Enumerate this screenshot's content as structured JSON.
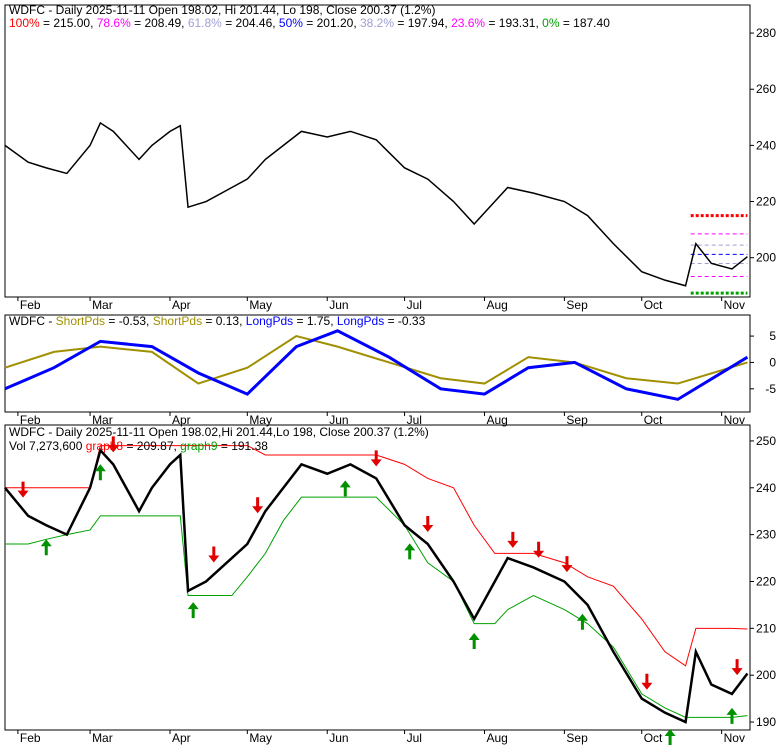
{
  "chart_data": [
    {
      "type": "line",
      "panel": "price-fibonacci",
      "title": "WDFC - Daily 2025-11-11 Open 198.02, Hi 201.44, Lo 198, Close 200.37 (1.2%)",
      "fib_levels": [
        {
          "label": "100%",
          "value": 215.0,
          "color": "#ff0000"
        },
        {
          "label": "78.6%",
          "value": 208.49,
          "color": "#ff00ff"
        },
        {
          "label": "61.8%",
          "value": 204.46,
          "color": "#a0a0d0"
        },
        {
          "label": "50%",
          "value": 201.2,
          "color": "#0000ff"
        },
        {
          "label": "38.2%",
          "value": 197.94,
          "color": "#a0a0d0"
        },
        {
          "label": "23.6%",
          "value": 193.31,
          "color": "#ff00ff"
        },
        {
          "label": "0%",
          "value": 187.4,
          "color": "#00a000"
        }
      ],
      "fib_texts": {
        "f100": "100%",
        "v100": " = 215.00, ",
        "f786": "78.6%",
        "v786": " = 208.49, ",
        "f618": "61.8%",
        "v618": " = 204.46, ",
        "f50": "50%",
        "v50": " = 201.20, ",
        "f382": "38.2%",
        "v382": " = 197.94, ",
        "f236": "23.6%",
        "v236": " = 193.31, ",
        "f0": "0%",
        "v0": " = 187.40"
      },
      "y_ticks": [
        "280",
        "260",
        "240",
        "220",
        "200"
      ],
      "ylim": [
        186,
        290
      ]
    },
    {
      "type": "line",
      "panel": "oscillator",
      "title_prefix": "WDFC - ",
      "labels": [
        {
          "text": "ShortPds",
          "value": " = -0.53, ",
          "color": "#a09000"
        },
        {
          "text": "ShortPds",
          "value": " = 0.13, ",
          "color": "#a09000"
        },
        {
          "text": "LongPds",
          "value": " = 1.75, ",
          "color": "#0000ff"
        },
        {
          "text": "LongPds",
          "value": " = -0.33",
          "color": "#0000ff"
        }
      ],
      "y_ticks": [
        "5",
        "0",
        "-5"
      ],
      "ylim": [
        -9.4,
        9
      ],
      "x": [
        "2025-01-27",
        "2025-02-15",
        "2025-03-05",
        "2025-03-25",
        "2025-04-12",
        "2025-05-01",
        "2025-05-20",
        "2025-06-05",
        "2025-06-25",
        "2025-07-15",
        "2025-08-01",
        "2025-08-18",
        "2025-09-05",
        "2025-09-25",
        "2025-10-15",
        "2025-11-11"
      ],
      "series": [
        {
          "values": [
            -1,
            2,
            3,
            2,
            -4,
            -1,
            5,
            3,
            0,
            -3,
            -4,
            1,
            0,
            -3,
            -4,
            0
          ],
          "color": "#a09000"
        },
        {
          "values": [
            -5,
            -1,
            4,
            3,
            -2,
            -6,
            3,
            6,
            1,
            -5,
            -6,
            -1,
            0,
            -5,
            -7,
            1
          ],
          "color": "#0000ff"
        }
      ]
    },
    {
      "type": "line",
      "panel": "price-stops",
      "title": "WDFC - Daily 2025-11-11 Open 198.02,Hi 201.44,Lo 198, Close 200.37 (1.2%)",
      "legend": {
        "vol": "Vol 7,273,600 ",
        "graph8": "graph8",
        "graph8_value": " = 209.87, ",
        "graph9": "graph9",
        "graph9_value": " = 191.38"
      },
      "y_ticks": [
        "250",
        "240",
        "230",
        "220",
        "210",
        "200",
        "190"
      ],
      "ylim": [
        188.3,
        253.4
      ],
      "x": [
        "2025-01-27",
        "2025-02-05",
        "2025-02-12",
        "2025-02-20",
        "2025-03-01",
        "2025-03-05",
        "2025-03-10",
        "2025-03-15",
        "2025-03-20",
        "2025-03-25",
        "2025-04-01",
        "2025-04-05",
        "2025-04-08",
        "2025-04-15",
        "2025-04-25",
        "2025-05-01",
        "2025-05-08",
        "2025-05-15",
        "2025-05-22",
        "2025-06-01",
        "2025-06-10",
        "2025-06-20",
        "2025-07-01",
        "2025-07-10",
        "2025-07-20",
        "2025-07-28",
        "2025-08-05",
        "2025-08-10",
        "2025-08-20",
        "2025-09-01",
        "2025-09-10",
        "2025-09-20",
        "2025-10-01",
        "2025-10-10",
        "2025-10-18",
        "2025-10-22",
        "2025-10-28",
        "2025-11-05",
        "2025-11-11"
      ],
      "close": [
        240,
        234,
        232,
        230,
        240,
        248,
        245,
        240,
        235,
        240,
        245,
        247,
        218,
        220,
        225,
        228,
        235,
        240,
        245,
        243,
        245,
        242,
        232,
        228,
        220,
        212,
        220,
        225,
        223,
        220,
        215,
        205,
        195,
        192,
        190,
        205,
        198,
        196,
        200.37
      ],
      "graph8": [
        240,
        240,
        240,
        240,
        240,
        249,
        249,
        249,
        249,
        249,
        249,
        249,
        249,
        249,
        249,
        249,
        247,
        247,
        247,
        247,
        247,
        247,
        245,
        242,
        240,
        232,
        226,
        226,
        226,
        224,
        221,
        219,
        212,
        205,
        202,
        210,
        210,
        210,
        209.87
      ],
      "graph9": [
        228,
        228,
        229,
        230,
        231,
        234,
        234,
        234,
        234,
        234,
        234,
        234,
        217,
        217,
        217,
        221,
        226,
        233,
        238,
        238,
        238,
        238,
        232,
        224,
        220,
        211,
        211,
        214,
        217,
        214,
        211,
        206,
        196,
        193,
        191,
        191,
        191,
        191,
        191.38
      ],
      "x_ticks": [
        "Feb",
        "Mar",
        "Apr",
        "May",
        "Jun",
        "Jul",
        "Aug",
        "Sep",
        "Oct",
        "Nov"
      ],
      "x_tick_dates": [
        "2025-02-01",
        "2025-03-01",
        "2025-04-01",
        "2025-05-01",
        "2025-06-01",
        "2025-07-01",
        "2025-08-01",
        "2025-09-01",
        "2025-10-01",
        "2025-11-01"
      ],
      "signals_down": [
        "2025-02-03",
        "2025-03-10",
        "2025-04-18",
        "2025-05-05",
        "2025-06-20",
        "2025-07-10",
        "2025-08-12",
        "2025-08-22",
        "2025-09-02",
        "2025-10-03",
        "2025-11-07"
      ],
      "signals_up": [
        "2025-02-12",
        "2025-03-05",
        "2025-04-10",
        "2025-06-08",
        "2025-07-03",
        "2025-07-28",
        "2025-09-08",
        "2025-10-12",
        "2025-11-05"
      ]
    }
  ]
}
